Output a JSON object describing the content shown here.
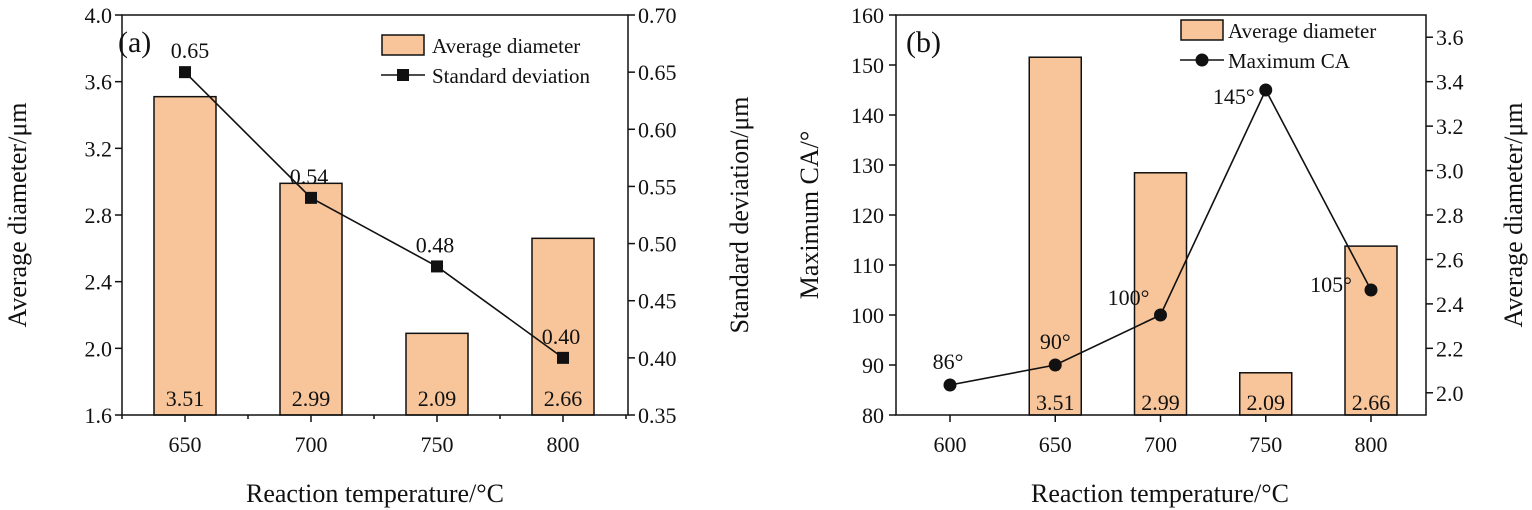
{
  "chart_data": [
    {
      "panel_label": "(a)",
      "type": "bar+line",
      "xlabel": "Reaction temperature/°C",
      "categories": [
        "650",
        "700",
        "750",
        "800"
      ],
      "bar_series": {
        "name": "Average diameter",
        "axis": "left",
        "values": [
          3.51,
          2.99,
          2.09,
          2.66
        ],
        "labels": [
          "3.51",
          "2.99",
          "2.09",
          "2.66"
        ]
      },
      "line_series": {
        "name": "Standard deviation",
        "axis": "right",
        "marker": "square",
        "values": [
          0.65,
          0.54,
          0.48,
          0.4
        ],
        "labels": [
          "0.65",
          "0.54",
          "0.48",
          "0.40"
        ]
      },
      "y_left": {
        "label": "Average diameter/μm",
        "lim": [
          1.6,
          4.0
        ],
        "ticks": [
          "1.6",
          "2.0",
          "2.4",
          "2.8",
          "3.2",
          "3.6",
          "4.0"
        ]
      },
      "y_right": {
        "label": "Standard deviation/μm",
        "lim": [
          0.35,
          0.7
        ],
        "ticks": [
          "0.35",
          "0.40",
          "0.45",
          "0.50",
          "0.55",
          "0.60",
          "0.65",
          "0.70"
        ]
      },
      "legend_position": "top-right"
    },
    {
      "panel_label": "(b)",
      "type": "bar+line",
      "xlabel": "Reaction temperature/°C",
      "x_ticks": [
        "600",
        "650",
        "700",
        "750",
        "800"
      ],
      "bar_series": {
        "name": "Average diameter",
        "axis": "right",
        "x": [
          650,
          700,
          750,
          800
        ],
        "values": [
          3.51,
          2.99,
          2.09,
          2.66
        ],
        "labels": [
          "3.51",
          "2.99",
          "2.09",
          "2.66"
        ]
      },
      "line_series": {
        "name": "Maximum CA",
        "axis": "left",
        "marker": "circle",
        "x": [
          600,
          650,
          700,
          750,
          800
        ],
        "values": [
          86,
          90,
          100,
          145,
          105
        ],
        "labels": [
          "86°",
          "90°",
          "100°",
          "145°",
          "105°"
        ]
      },
      "y_left": {
        "label": "Maximum CA/°",
        "lim": [
          80,
          160
        ],
        "ticks": [
          "80",
          "90",
          "100",
          "110",
          "120",
          "130",
          "140",
          "150",
          "160"
        ]
      },
      "y_right": {
        "label": "Average diameter/μm",
        "lim": [
          1.9,
          3.7
        ],
        "ticks": [
          "2.0",
          "2.2",
          "2.4",
          "2.6",
          "2.8",
          "3.0",
          "3.2",
          "3.4",
          "3.6"
        ]
      },
      "legend_position": "top-right"
    }
  ]
}
